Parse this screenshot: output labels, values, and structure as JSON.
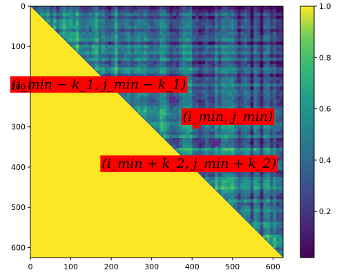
{
  "chart_data": {
    "type": "heatmap",
    "title": "",
    "xlabel": "",
    "ylabel": "",
    "colormap": "viridis",
    "matrix_size": 625,
    "xlim": [
      0,
      625
    ],
    "ylim": [
      625,
      0
    ],
    "x_ticks": [
      0,
      100,
      200,
      300,
      400,
      500,
      600
    ],
    "y_ticks": [
      0,
      100,
      200,
      300,
      400,
      500,
      600
    ],
    "colorbar": {
      "range": [
        0.02,
        1.0
      ],
      "ticks": [
        {
          "value": 0.2,
          "label": "0.2"
        },
        {
          "value": 0.4,
          "label": "0.4"
        },
        {
          "value": 0.6,
          "label": "0.6"
        },
        {
          "value": 0.8,
          "label": "0.8"
        },
        {
          "value": 1.0,
          "label": "1.0"
        }
      ]
    },
    "lower_triangle_value": 1.0,
    "upper_triangle_mean_value": 0.45,
    "markers": [
      {
        "name": "upper-point",
        "x": 352,
        "y": 233,
        "color": "#5a2a8c"
      },
      {
        "name": "min-point",
        "x": 410,
        "y": 296,
        "color": "#ff0000"
      },
      {
        "name": "lower-point",
        "x": 460,
        "y": 340,
        "color": "#5a2a8c"
      }
    ],
    "annotations": [
      {
        "name": "label-upper",
        "text": "(i_min − k_1, j_min − k_1)",
        "x": 385,
        "y": 193,
        "bg": "#ff0000"
      },
      {
        "name": "label-min",
        "text": "(i_min, j_min)",
        "x": 600,
        "y": 273,
        "bg": "#ff0000"
      },
      {
        "name": "label-lower",
        "text": "(i_min + k_2, j_min + k_2)",
        "x": 608,
        "y": 390,
        "bg": "#ff0000"
      }
    ]
  }
}
